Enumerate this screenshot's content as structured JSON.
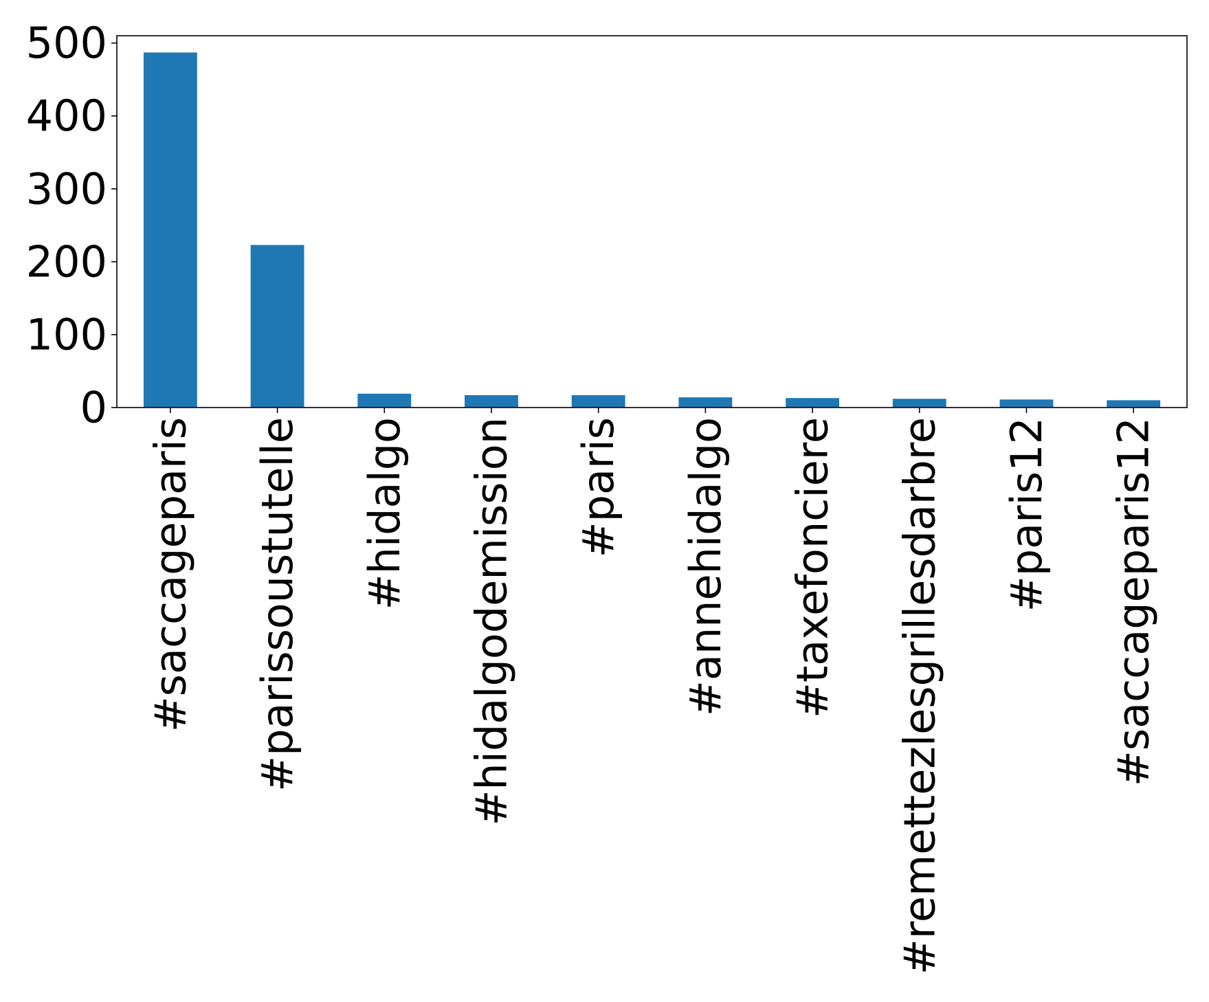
{
  "chart_data": {
    "type": "bar",
    "title": "",
    "xlabel": "",
    "ylabel": "",
    "categories": [
      "#saccageparis",
      "#parissoustutelle",
      "#hidalgo",
      "#hidalgodemission",
      "#paris",
      "#annehidalgo",
      "#taxefonciere",
      "#remettezlesgrillesdarbre",
      "#paris12",
      "#saccageparis12"
    ],
    "values": [
      487,
      223,
      19,
      17,
      17,
      14,
      13,
      12,
      11,
      10
    ],
    "ylim": [
      0,
      510
    ],
    "yticks": [
      0,
      100,
      200,
      300,
      400,
      500
    ],
    "grid": false,
    "legend": "none",
    "bar_color": "#1f77b4"
  }
}
